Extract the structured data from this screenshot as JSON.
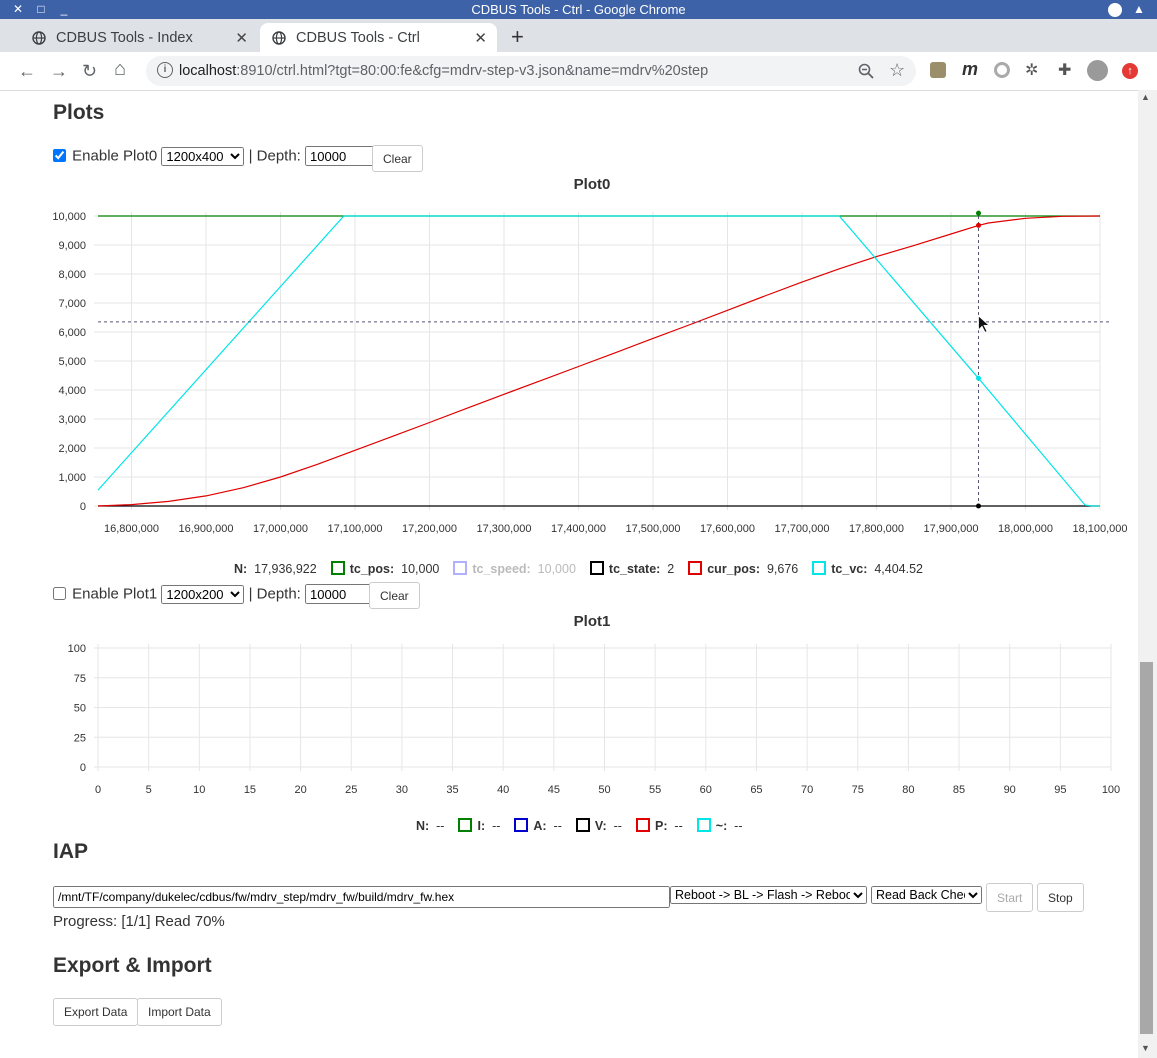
{
  "window": {
    "title": "CDBUS Tools - Ctrl - Google Chrome"
  },
  "tabs": [
    {
      "label": "CDBUS Tools - Index"
    },
    {
      "label": "CDBUS Tools - Ctrl"
    }
  ],
  "address": {
    "host": "localhost",
    "rest": ":8910/ctrl.html?tgt=80:00:fe&cfg=mdrv-step-v3.json&name=mdrv%20step"
  },
  "plots": {
    "heading": "Plots",
    "plot0": {
      "enable_label": "Enable Plot0",
      "enabled": true,
      "size": "1200x400",
      "depth_label": "| Depth:",
      "depth": "10000",
      "clear": "Clear",
      "title": "Plot0",
      "legend": [
        {
          "name": "N:",
          "value": "17,936,922",
          "color": ""
        },
        {
          "name": "tc_pos:",
          "value": "10,000",
          "color": "#008000"
        },
        {
          "name": "tc_speed:",
          "value": "10,000",
          "color": "#b0b0ff",
          "hidden": true
        },
        {
          "name": "tc_state:",
          "value": "2",
          "color": "#000000"
        },
        {
          "name": "cur_pos:",
          "value": "9,676",
          "color": "#e00000"
        },
        {
          "name": "tc_vc:",
          "value": "4,404.52",
          "color": "#00e5e5"
        }
      ]
    },
    "plot1": {
      "enable_label": "Enable Plot1",
      "enabled": false,
      "size": "1200x200",
      "depth_label": "| Depth:",
      "depth": "10000",
      "clear": "Clear",
      "title": "Plot1",
      "legend": [
        {
          "name": "N:",
          "value": "--",
          "color": ""
        },
        {
          "name": "I:",
          "value": "--",
          "color": "#008000"
        },
        {
          "name": "A:",
          "value": "--",
          "color": "#0000cc"
        },
        {
          "name": "V:",
          "value": "--",
          "color": "#000000"
        },
        {
          "name": "P:",
          "value": "--",
          "color": "#e00000"
        },
        {
          "name": "~:",
          "value": "--",
          "color": "#00e5e5"
        }
      ]
    }
  },
  "chart_data": [
    {
      "type": "line",
      "title": "Plot0",
      "x_ticks": [
        "16,800,000",
        "16,900,000",
        "17,000,000",
        "17,100,000",
        "17,200,000",
        "17,300,000",
        "17,400,000",
        "17,500,000",
        "17,600,000",
        "17,700,000",
        "17,800,000",
        "17,900,000",
        "18,000,000",
        "18,100,000"
      ],
      "y_ticks": [
        "0",
        "1,000",
        "2,000",
        "3,000",
        "4,000",
        "5,000",
        "6,000",
        "7,000",
        "8,000",
        "9,000",
        "10,000"
      ],
      "xlim": [
        16755000,
        18100000
      ],
      "ylim": [
        0,
        10000
      ],
      "grid": true,
      "cursor": {
        "x": 17936922,
        "y": 6350
      },
      "series": [
        {
          "name": "tc_pos",
          "color": "#008000",
          "x": [
            16755000,
            18100000
          ],
          "y": [
            10000,
            10000
          ]
        },
        {
          "name": "tc_state",
          "color": "#000000",
          "x": [
            16755000,
            18100000
          ],
          "y": [
            0,
            0
          ]
        },
        {
          "name": "cur_pos",
          "color": "#e00000",
          "x": [
            16755000,
            16800000,
            16850000,
            16900000,
            16950000,
            17000000,
            17050000,
            17100000,
            17150000,
            17200000,
            17250000,
            17300000,
            17350000,
            17400000,
            17450000,
            17500000,
            17550000,
            17600000,
            17650000,
            17700000,
            17750000,
            17800000,
            17850000,
            17900000,
            17936922,
            17950000,
            18000000,
            18050000,
            18100000
          ],
          "y": [
            0,
            50,
            160,
            350,
            630,
            1000,
            1440,
            1920,
            2400,
            2880,
            3370,
            3850,
            4330,
            4810,
            5290,
            5780,
            6260,
            6750,
            7240,
            7720,
            8180,
            8600,
            8980,
            9380,
            9676,
            9760,
            9920,
            9990,
            10000
          ]
        },
        {
          "name": "tc_vc",
          "color": "#00e5e5",
          "x": [
            16755000,
            17085000,
            17750000,
            17936922,
            18080000,
            18090000,
            18100000
          ],
          "y": [
            550,
            10000,
            10000,
            4404.52,
            30,
            0,
            0
          ]
        }
      ],
      "markers": [
        {
          "series": "tc_pos",
          "y": 10100
        },
        {
          "series": "cur_pos",
          "y": 9676
        },
        {
          "series": "tc_vc",
          "y": 4404.52
        },
        {
          "series": "tc_state",
          "y": 0
        }
      ]
    },
    {
      "type": "line",
      "title": "Plot1",
      "x_ticks": [
        "0",
        "5",
        "10",
        "15",
        "20",
        "25",
        "30",
        "35",
        "40",
        "45",
        "50",
        "55",
        "60",
        "65",
        "70",
        "75",
        "80",
        "85",
        "90",
        "95",
        "100"
      ],
      "y_ticks": [
        "0",
        "25",
        "50",
        "75",
        "100"
      ],
      "xlim": [
        0,
        100
      ],
      "ylim": [
        0,
        100
      ],
      "grid": true,
      "series": []
    }
  ],
  "iap": {
    "heading": "IAP",
    "path": "/mnt/TF/company/dukelec/cdbus/fw/mdrv_step/mdrv_fw/build/mdrv_fw.hex",
    "mode": "Reboot -> BL -> Flash -> Reboot",
    "check": "Read Back Check",
    "start": "Start",
    "stop": "Stop",
    "progress": "Progress: [1/1] Read 70%"
  },
  "export": {
    "heading": "Export & Import",
    "export_btn": "Export Data",
    "import_btn": "Import Data"
  }
}
